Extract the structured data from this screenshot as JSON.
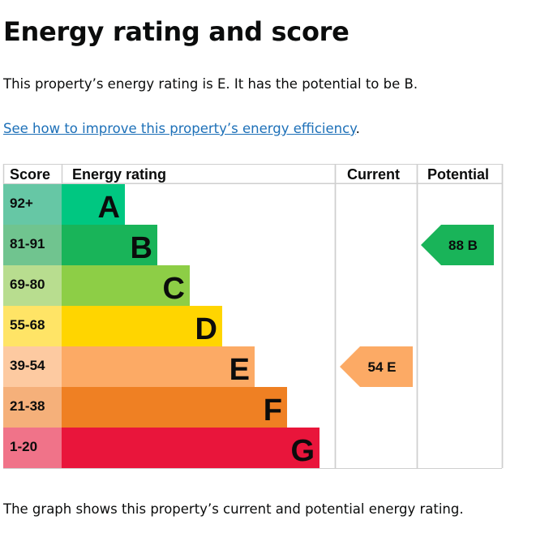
{
  "heading": "Energy rating and score",
  "intro": "This property’s energy rating is E. It has the potential to be B.",
  "link_text": "See how to improve this property’s energy efficiency",
  "link_suffix": ".",
  "caption": "The graph shows this property’s current and potential energy rating.",
  "chart_data": {
    "type": "bar",
    "columns": [
      "Score",
      "Energy rating",
      "Current",
      "Potential"
    ],
    "bands": [
      {
        "letter": "A",
        "range": "92+",
        "color": "#00c781",
        "score_bg": "#66c7a5"
      },
      {
        "letter": "B",
        "range": "81-91",
        "color": "#19b459",
        "score_bg": "#70c48f"
      },
      {
        "letter": "C",
        "range": "69-80",
        "color": "#8dce46",
        "score_bg": "#b8dd8f"
      },
      {
        "letter": "D",
        "range": "55-68",
        "color": "#ffd500",
        "score_bg": "#ffe466"
      },
      {
        "letter": "E",
        "range": "39-54",
        "color": "#fcaa65",
        "score_bg": "#fdcaa1"
      },
      {
        "letter": "F",
        "range": "21-38",
        "color": "#ef8023",
        "score_bg": "#f5b07a"
      },
      {
        "letter": "G",
        "range": "1-20",
        "color": "#e9153b",
        "score_bg": "#f07389"
      }
    ],
    "current": {
      "score": 54,
      "letter": "E",
      "label": "54  E"
    },
    "potential": {
      "score": 88,
      "letter": "B",
      "label": "88  B"
    }
  }
}
